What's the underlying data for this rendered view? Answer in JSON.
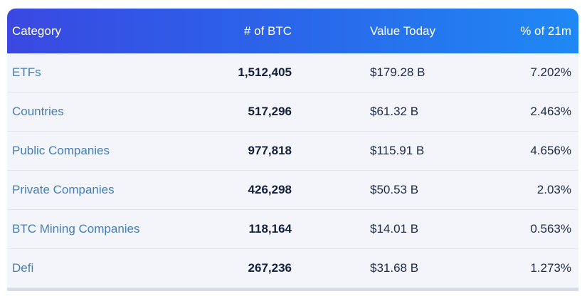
{
  "table": {
    "columns": [
      {
        "label": "Category"
      },
      {
        "label": "# of BTC"
      },
      {
        "label": "Value Today"
      },
      {
        "label": "% of 21m"
      }
    ],
    "rows": [
      {
        "category": "ETFs",
        "btc": "1,512,405",
        "value": "$179.28 B",
        "pct": "7.202%"
      },
      {
        "category": "Countries",
        "btc": "517,296",
        "value": "$61.32 B",
        "pct": "2.463%"
      },
      {
        "category": "Public Companies",
        "btc": "977,818",
        "value": "$115.91 B",
        "pct": "4.656%"
      },
      {
        "category": "Private Companies",
        "btc": "426,298",
        "value": "$50.53 B",
        "pct": "2.03%"
      },
      {
        "category": "BTC Mining Companies",
        "btc": "118,164",
        "value": "$14.01 B",
        "pct": "0.563%"
      },
      {
        "category": "Defi",
        "btc": "267,236",
        "value": "$31.68 B",
        "pct": "1.273%"
      }
    ]
  },
  "chart_data": {
    "type": "table",
    "title": "",
    "columns": [
      "Category",
      "# of BTC",
      "Value Today",
      "% of 21m"
    ],
    "rows": [
      [
        "ETFs",
        "1,512,405",
        "$179.28 B",
        "7.202%"
      ],
      [
        "Countries",
        "517,296",
        "$61.32 B",
        "2.463%"
      ],
      [
        "Public Companies",
        "977,818",
        "$115.91 B",
        "4.656%"
      ],
      [
        "Private Companies",
        "426,298",
        "$50.53 B",
        "2.03%"
      ],
      [
        "BTC Mining Companies",
        "118,164",
        "$14.01 B",
        "0.563%"
      ],
      [
        "Defi",
        "267,236",
        "$31.68 B",
        "1.273%"
      ]
    ]
  },
  "colors": {
    "header_gradient_left": "#3a48e1",
    "header_gradient_right": "#1f88f4",
    "header_text": "#ffffff",
    "row_background": "#f3f5fa",
    "row_border": "#e2e5ef",
    "category_link": "#447eb8",
    "number_text": "#141f3c",
    "value_text": "#1e2945"
  }
}
